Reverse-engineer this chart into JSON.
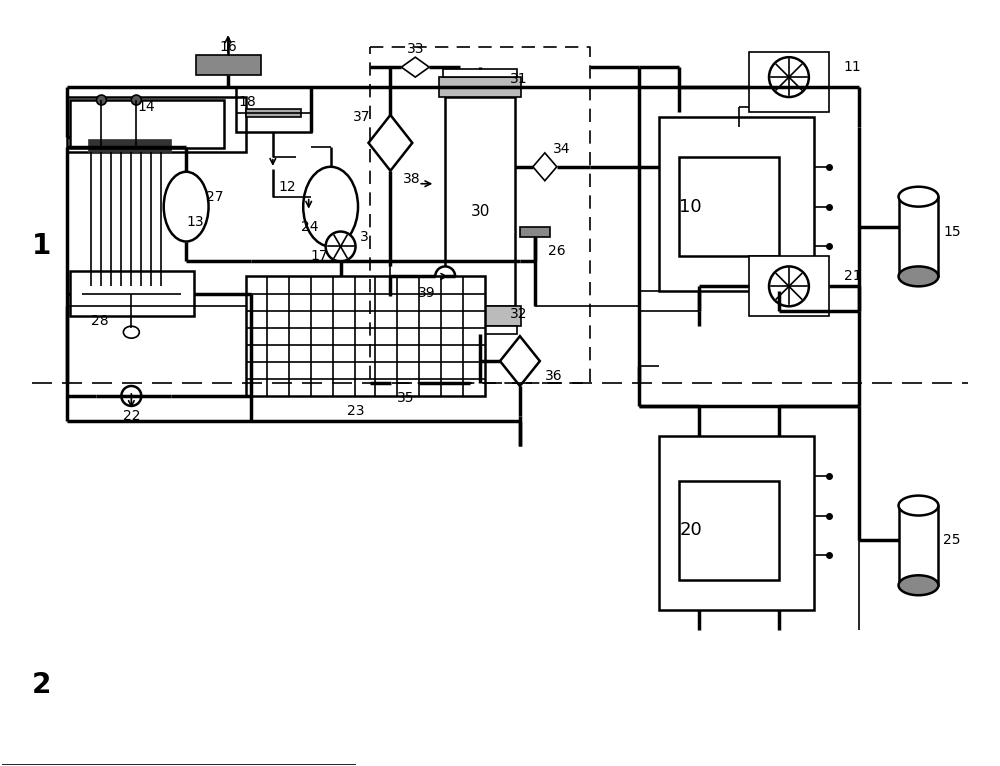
{
  "bg_color": "#ffffff",
  "lc": "#000000",
  "fig_width": 10.0,
  "fig_height": 7.66,
  "dpi": 100
}
